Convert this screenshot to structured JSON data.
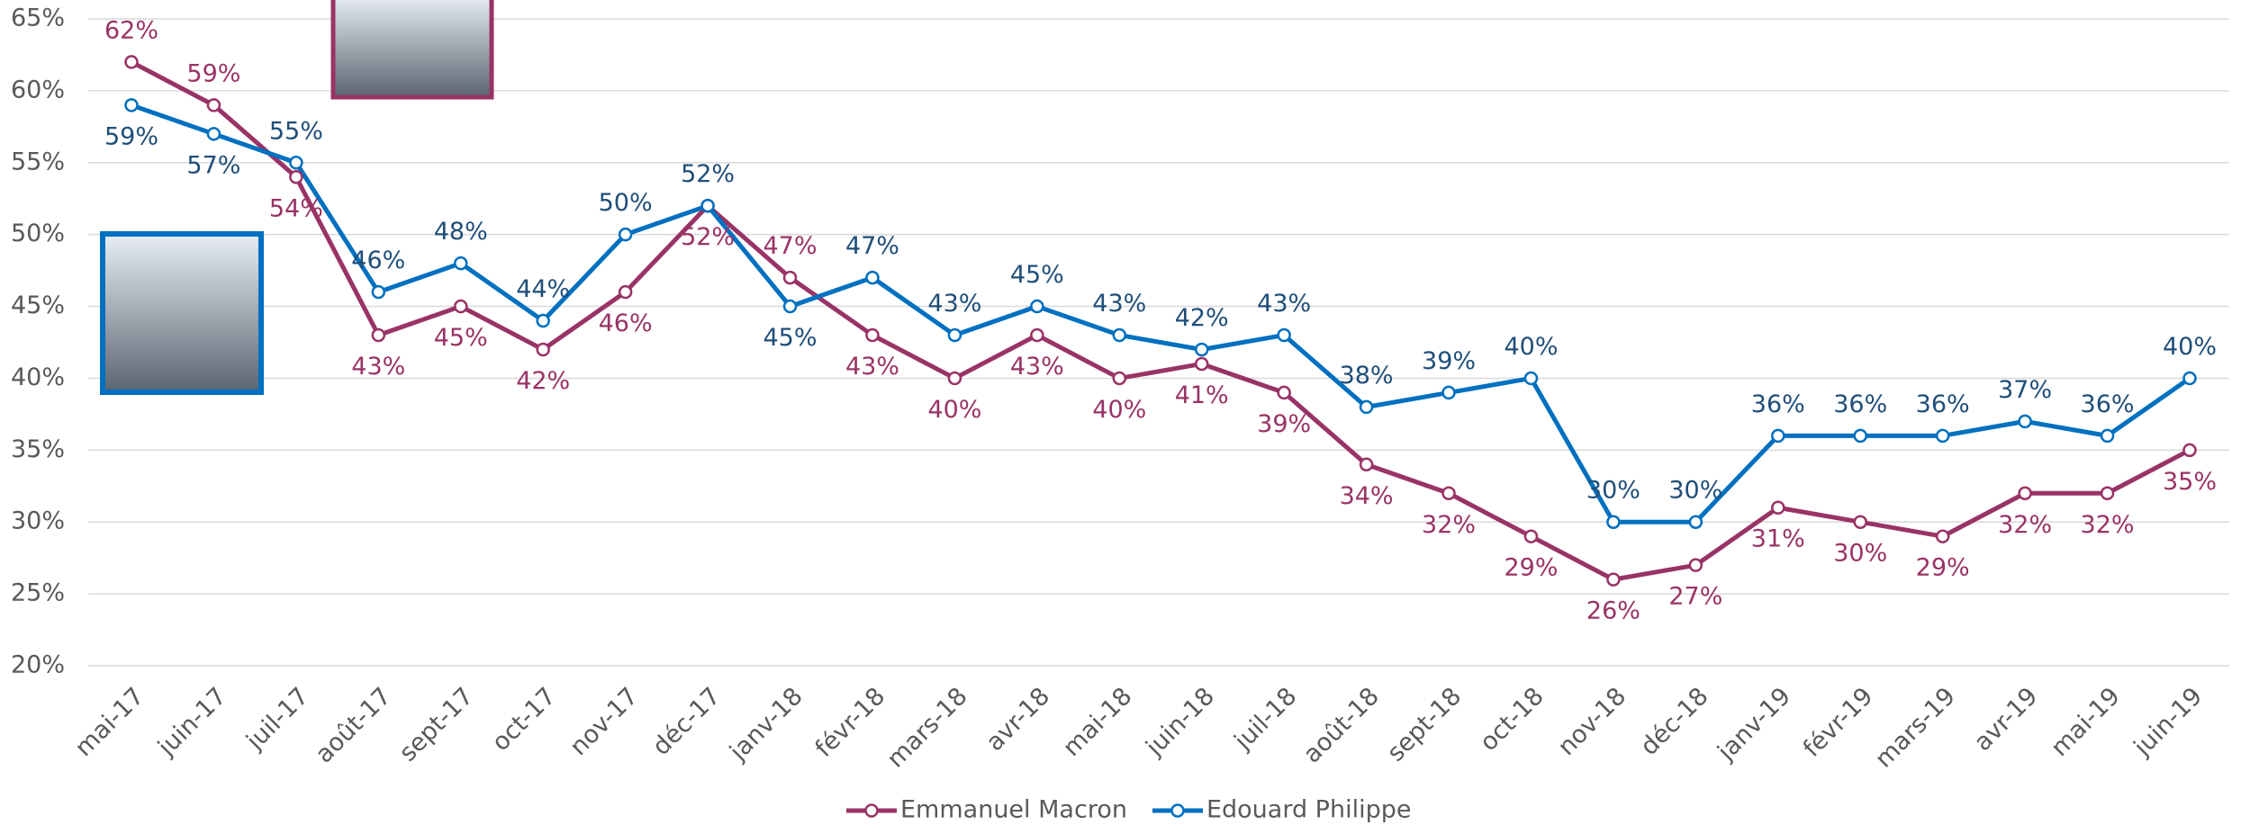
{
  "chart_data": {
    "type": "line",
    "categories": [
      "mai-17",
      "juin-17",
      "juil-17",
      "août-17",
      "sept-17",
      "oct-17",
      "nov-17",
      "déc-17",
      "janv-18",
      "févr-18",
      "mars-18",
      "avr-18",
      "mai-18",
      "juin-18",
      "juil-18",
      "août-18",
      "sept-18",
      "oct-18",
      "nov-18",
      "déc-18",
      "janv-19",
      "févr-19",
      "mars-19",
      "avr-19",
      "mai-19",
      "juin-19"
    ],
    "series": [
      {
        "name": "Emmanuel Macron",
        "color": "#993366",
        "values": [
          62,
          59,
          54,
          43,
          45,
          42,
          46,
          52,
          47,
          43,
          40,
          43,
          40,
          41,
          39,
          34,
          32,
          29,
          26,
          27,
          31,
          30,
          29,
          32,
          32,
          35
        ],
        "value_labels": [
          "62%",
          "59%",
          "54%",
          "43%",
          "45%",
          "42%",
          "46%",
          "52%",
          "47%",
          "43%",
          "40%",
          "43%",
          "40%",
          "41%",
          "39%",
          "34%",
          "32%",
          "29%",
          "26%",
          "27%",
          "31%",
          "30%",
          "29%",
          "32%",
          "32%",
          "35%"
        ]
      },
      {
        "name": "Edouard Philippe",
        "color": "#0070c0",
        "values": [
          59,
          57,
          55,
          46,
          48,
          44,
          50,
          52,
          45,
          47,
          43,
          45,
          43,
          42,
          43,
          38,
          39,
          40,
          30,
          30,
          36,
          36,
          36,
          37,
          36,
          40
        ],
        "value_labels": [
          "59%",
          "57%",
          "55%",
          "46%",
          "48%",
          "44%",
          "50%",
          "52%",
          "45%",
          "47%",
          "43%",
          "45%",
          "43%",
          "42%",
          "43%",
          "38%",
          "39%",
          "40%",
          "30%",
          "30%",
          "36%",
          "36%",
          "36%",
          "37%",
          "36%",
          "40%"
        ]
      }
    ],
    "ylim": [
      20,
      65
    ],
    "yticks": [
      {
        "value": 20,
        "label": "20%"
      },
      {
        "value": 25,
        "label": "25%"
      },
      {
        "value": 30,
        "label": "30%"
      },
      {
        "value": 35,
        "label": "35%"
      },
      {
        "value": 40,
        "label": "40%"
      },
      {
        "value": 45,
        "label": "45%"
      },
      {
        "value": 50,
        "label": "50%"
      },
      {
        "value": 55,
        "label": "55%"
      },
      {
        "value": 60,
        "label": "60%"
      },
      {
        "value": 65,
        "label": "65%"
      }
    ],
    "grid": true,
    "legend": "bottom"
  }
}
